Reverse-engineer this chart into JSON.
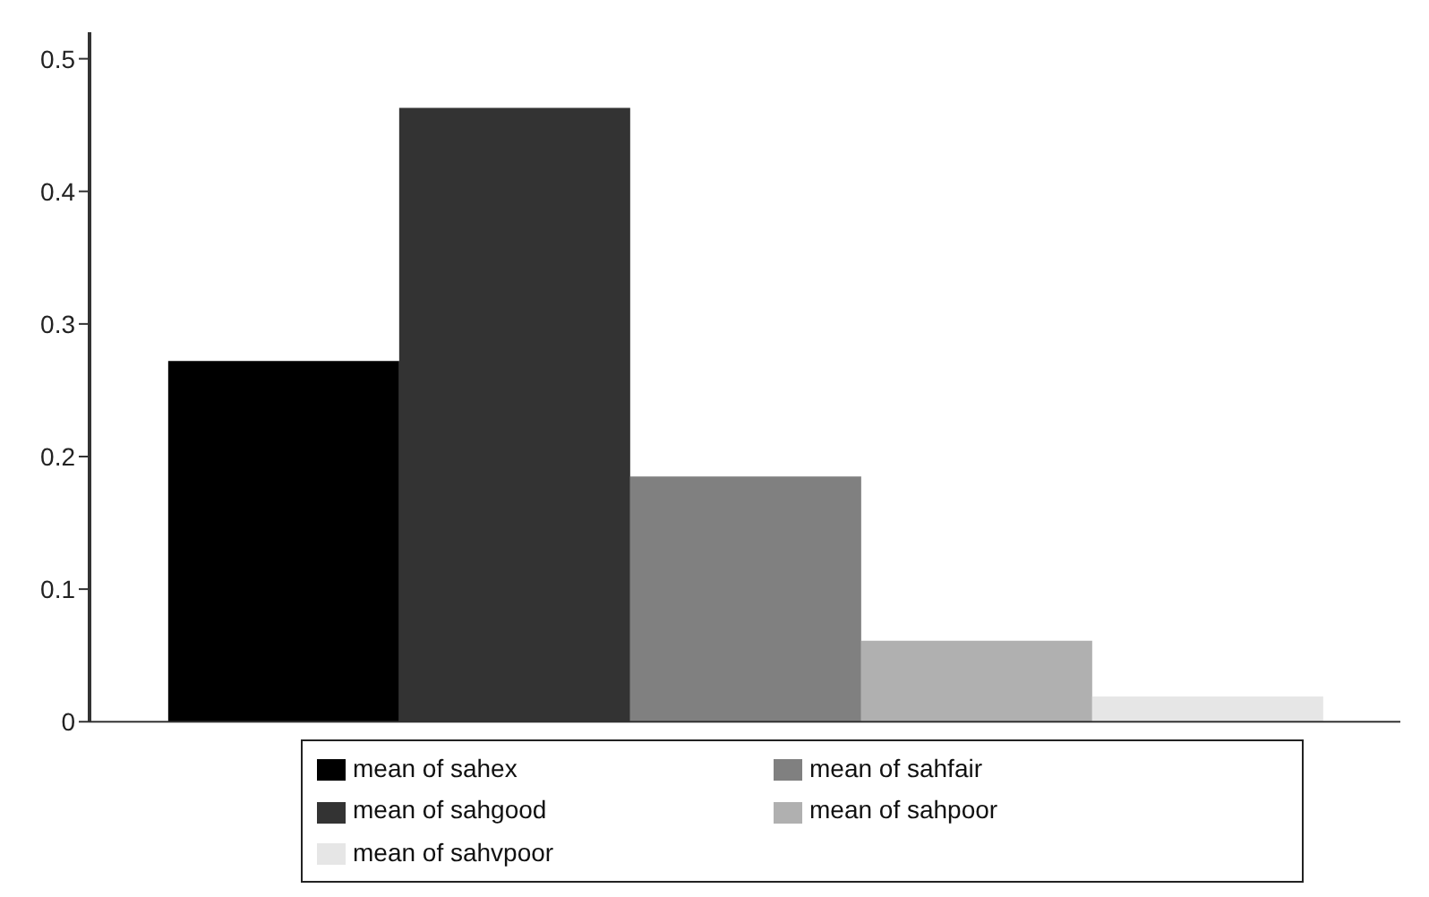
{
  "chart_data": {
    "type": "bar",
    "categories": [
      null
    ],
    "series": [
      {
        "name": "mean of sahex",
        "color": "#000000",
        "values": [
          0.272
        ]
      },
      {
        "name": "mean of sahgood",
        "color": "#333333",
        "values": [
          0.463
        ]
      },
      {
        "name": "mean of sahfair",
        "color": "#808080",
        "values": [
          0.185
        ]
      },
      {
        "name": "mean of sahpoor",
        "color": "#b0b0b0",
        "values": [
          0.061
        ]
      },
      {
        "name": "mean of sahvpoor",
        "color": "#e6e6e6",
        "values": [
          0.019
        ]
      }
    ],
    "ylim": [
      0,
      0.52
    ],
    "yticks": [
      0,
      0.1,
      0.2,
      0.3,
      0.4,
      0.5
    ],
    "grid": false,
    "legend": "bottom"
  }
}
